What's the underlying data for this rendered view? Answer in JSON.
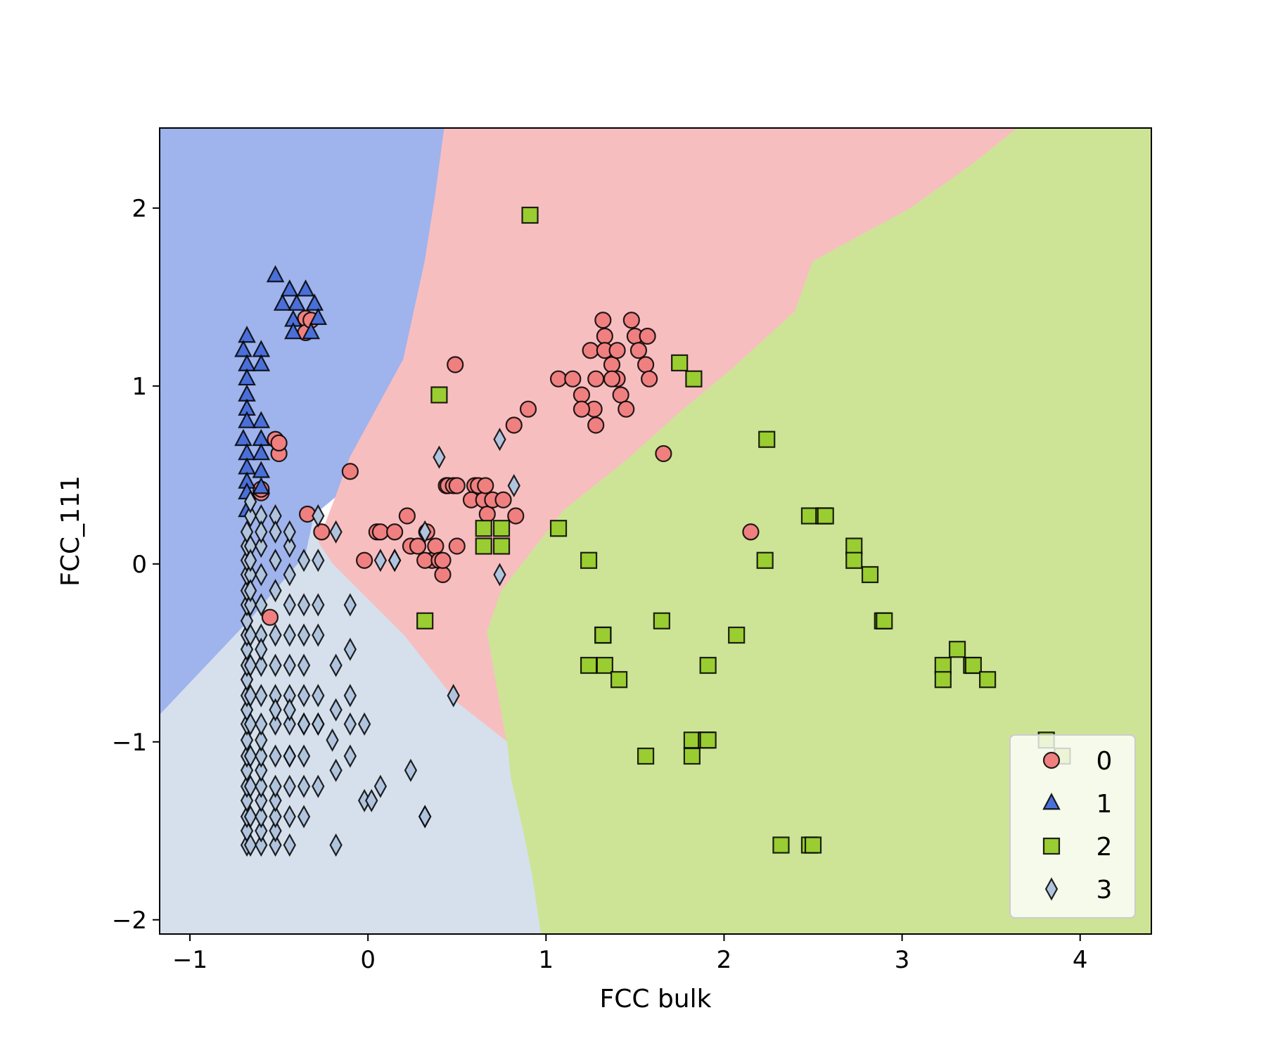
{
  "chart_data": {
    "type": "scatter",
    "title": "",
    "xlabel": "FCC bulk",
    "ylabel": "FCC_111",
    "xlim": [
      -1.17,
      4.4
    ],
    "ylim": [
      -2.08,
      2.45
    ],
    "x_ticks": [
      {
        "value": -1,
        "label": "−1"
      },
      {
        "value": 0,
        "label": "0"
      },
      {
        "value": 1,
        "label": "1"
      },
      {
        "value": 2,
        "label": "2"
      },
      {
        "value": 3,
        "label": "3"
      },
      {
        "value": 4,
        "label": "4"
      }
    ],
    "y_ticks": [
      {
        "value": -2,
        "label": "−2"
      },
      {
        "value": -1,
        "label": "−1"
      },
      {
        "value": 0,
        "label": "0"
      },
      {
        "value": 1,
        "label": "1"
      },
      {
        "value": 2,
        "label": "2"
      }
    ],
    "grid": false,
    "legend_position": "lower right",
    "regions": [
      {
        "class": "1",
        "color": "#9fb3ec",
        "polygon": [
          [
            -1.17,
            2.45
          ],
          [
            0.43,
            2.45
          ],
          [
            0.38,
            2.08
          ],
          [
            0.32,
            1.7
          ],
          [
            0.2,
            1.15
          ],
          [
            -0.1,
            0.6
          ],
          [
            -0.18,
            0.38
          ],
          [
            -0.3,
            0.28
          ],
          [
            -0.35,
            0.05
          ],
          [
            -0.65,
            -0.3
          ],
          [
            -1.17,
            -0.85
          ]
        ]
      },
      {
        "class": "0",
        "color": "#f7bec0",
        "polygon": [
          [
            0.43,
            2.45
          ],
          [
            3.65,
            2.45
          ],
          [
            3.4,
            2.25
          ],
          [
            3.05,
            2.0
          ],
          [
            2.5,
            1.7
          ],
          [
            2.4,
            1.42
          ],
          [
            2.05,
            1.1
          ],
          [
            1.75,
            0.85
          ],
          [
            1.45,
            0.58
          ],
          [
            1.1,
            0.3
          ],
          [
            0.75,
            -0.15
          ],
          [
            0.67,
            -0.38
          ],
          [
            0.7,
            -0.55
          ],
          [
            0.78,
            -1.0
          ],
          [
            0.5,
            -0.78
          ],
          [
            0.2,
            -0.4
          ],
          [
            -0.2,
            0.0
          ],
          [
            -0.28,
            0.12
          ],
          [
            -0.18,
            0.38
          ],
          [
            -0.1,
            0.6
          ],
          [
            0.2,
            1.15
          ],
          [
            0.32,
            1.7
          ],
          [
            0.38,
            2.08
          ]
        ]
      },
      {
        "class": "2",
        "color": "#cde496",
        "polygon": [
          [
            3.65,
            2.45
          ],
          [
            4.4,
            2.45
          ],
          [
            4.4,
            -2.08
          ],
          [
            0.97,
            -2.08
          ],
          [
            0.92,
            -1.75
          ],
          [
            0.87,
            -1.5
          ],
          [
            0.8,
            -1.2
          ],
          [
            0.78,
            -1.0
          ],
          [
            0.7,
            -0.55
          ],
          [
            0.67,
            -0.38
          ],
          [
            0.75,
            -0.15
          ],
          [
            1.1,
            0.3
          ],
          [
            1.45,
            0.58
          ],
          [
            1.75,
            0.85
          ],
          [
            2.05,
            1.1
          ],
          [
            2.4,
            1.42
          ],
          [
            2.5,
            1.7
          ],
          [
            3.05,
            2.0
          ],
          [
            3.4,
            2.25
          ]
        ]
      },
      {
        "class": "3",
        "color": "#d5e0ec",
        "polygon": [
          [
            -1.17,
            -0.85
          ],
          [
            -0.65,
            -0.3
          ],
          [
            -0.35,
            0.05
          ],
          [
            -0.3,
            0.28
          ],
          [
            -0.28,
            0.12
          ],
          [
            -0.2,
            0.0
          ],
          [
            0.2,
            -0.4
          ],
          [
            0.5,
            -0.78
          ],
          [
            0.78,
            -1.0
          ],
          [
            0.8,
            -1.2
          ],
          [
            0.87,
            -1.5
          ],
          [
            0.92,
            -1.75
          ],
          [
            0.97,
            -2.08
          ],
          [
            -1.17,
            -2.08
          ]
        ]
      }
    ],
    "series": [
      {
        "name": "0",
        "marker": "circle",
        "color": "#f08080",
        "x": [
          -0.52,
          -0.5,
          -0.5,
          -0.6,
          -0.6,
          -0.34,
          -0.35,
          -0.26,
          -0.1,
          0.05,
          -0.02,
          0.07,
          0.15,
          0.22,
          0.24,
          0.28,
          0.33,
          0.36,
          0.32,
          0.38,
          0.4,
          0.42,
          0.44,
          0.45,
          0.5,
          0.42,
          0.48,
          0.5,
          0.6,
          0.58,
          0.65,
          0.62,
          0.67,
          0.7,
          0.66,
          0.76,
          0.83,
          0.82,
          0.9,
          0.49,
          1.07,
          1.15,
          1.2,
          1.27,
          1.28,
          1.25,
          1.32,
          1.33,
          1.33,
          1.37,
          1.4,
          1.42,
          1.45,
          1.48,
          1.5,
          1.52,
          1.57,
          1.56,
          1.2,
          1.37,
          1.28,
          1.4,
          1.58,
          1.66,
          2.15,
          -0.55,
          -0.35,
          -0.32
        ],
        "y": [
          0.7,
          0.62,
          0.68,
          0.4,
          0.42,
          0.28,
          1.38,
          0.18,
          0.52,
          0.18,
          0.02,
          0.18,
          0.18,
          0.27,
          0.1,
          0.1,
          0.18,
          0.02,
          0.02,
          0.1,
          0.02,
          -0.06,
          0.44,
          0.44,
          0.1,
          0.02,
          0.44,
          0.44,
          0.44,
          0.36,
          0.36,
          0.44,
          0.28,
          0.36,
          0.44,
          0.36,
          0.27,
          0.78,
          0.87,
          1.12,
          1.04,
          1.04,
          0.95,
          0.87,
          1.04,
          1.2,
          1.37,
          1.28,
          1.2,
          1.12,
          1.04,
          0.95,
          0.87,
          1.37,
          1.28,
          1.2,
          1.28,
          1.12,
          0.87,
          1.04,
          0.78,
          1.2,
          1.04,
          0.62,
          0.18,
          -0.3,
          1.3,
          1.37
        ]
      },
      {
        "name": "1",
        "marker": "triangle",
        "color": "#4a6fd8",
        "x": [
          -0.52,
          -0.44,
          -0.35,
          -0.4,
          -0.48,
          -0.42,
          -0.3,
          -0.28,
          -0.32,
          -0.42,
          -0.68,
          -0.7,
          -0.6,
          -0.68,
          -0.6,
          -0.68,
          -0.68,
          -0.68,
          -0.6,
          -0.68,
          -0.7,
          -0.6,
          -0.68,
          -0.6,
          -0.68,
          -0.68,
          -0.6,
          -0.68,
          -0.6,
          -0.68
        ],
        "y": [
          1.62,
          1.54,
          1.54,
          1.46,
          1.46,
          1.37,
          1.46,
          1.38,
          1.3,
          1.3,
          1.28,
          1.2,
          1.2,
          1.12,
          1.12,
          1.04,
          0.95,
          0.87,
          0.8,
          0.8,
          0.7,
          0.7,
          0.62,
          0.62,
          0.54,
          0.46,
          0.52,
          0.4,
          0.43,
          0.3
        ]
      },
      {
        "name": "2",
        "marker": "square",
        "color": "#9acd32",
        "x": [
          0.91,
          0.4,
          0.65,
          0.75,
          0.65,
          0.75,
          0.32,
          1.07,
          1.24,
          1.32,
          1.32,
          1.24,
          1.33,
          1.41,
          1.56,
          1.65,
          1.75,
          1.83,
          1.82,
          1.82,
          1.9,
          1.91,
          1.91,
          2.07,
          2.24,
          2.23,
          2.48,
          2.56,
          2.57,
          2.73,
          2.73,
          2.82,
          2.89,
          2.9,
          2.32,
          2.48,
          2.5,
          3.23,
          3.23,
          3.31,
          3.39,
          3.4,
          3.48,
          3.81,
          3.9
        ],
        "y": [
          1.96,
          0.95,
          0.2,
          0.2,
          0.1,
          0.1,
          -0.32,
          0.2,
          0.02,
          -0.4,
          -0.4,
          -0.57,
          -0.57,
          -0.65,
          -1.08,
          -0.32,
          1.13,
          1.04,
          -0.99,
          -1.08,
          -0.99,
          -0.99,
          -0.57,
          -0.4,
          0.7,
          0.02,
          0.27,
          0.27,
          0.27,
          0.1,
          0.02,
          -0.06,
          -0.32,
          -0.32,
          -1.58,
          -1.58,
          -1.58,
          -0.57,
          -0.65,
          -0.48,
          -0.57,
          -0.57,
          -0.65,
          -0.99,
          -1.08
        ]
      },
      {
        "name": "3",
        "marker": "diamond",
        "color": "#b0c4de",
        "x": [
          -0.68,
          -0.68,
          -0.68,
          -0.68,
          -0.68,
          -0.68,
          -0.68,
          -0.68,
          -0.68,
          -0.68,
          -0.68,
          -0.68,
          -0.68,
          -0.68,
          -0.68,
          -0.68,
          -0.68,
          -0.68,
          -0.68,
          -0.68,
          -0.68,
          -0.68,
          -0.66,
          -0.66,
          -0.66,
          -0.66,
          -0.66,
          -0.66,
          -0.66,
          -0.66,
          -0.66,
          -0.66,
          -0.66,
          -0.66,
          -0.66,
          -0.66,
          -0.66,
          -0.6,
          -0.6,
          -0.6,
          -0.6,
          -0.6,
          -0.6,
          -0.6,
          -0.6,
          -0.6,
          -0.6,
          -0.6,
          -0.6,
          -0.6,
          -0.6,
          -0.6,
          -0.6,
          -0.6,
          -0.52,
          -0.52,
          -0.52,
          -0.52,
          -0.52,
          -0.52,
          -0.52,
          -0.52,
          -0.52,
          -0.52,
          -0.52,
          -0.52,
          -0.52,
          -0.52,
          -0.44,
          -0.44,
          -0.44,
          -0.44,
          -0.44,
          -0.44,
          -0.44,
          -0.44,
          -0.44,
          -0.44,
          -0.44,
          -0.44,
          -0.36,
          -0.36,
          -0.36,
          -0.36,
          -0.36,
          -0.36,
          -0.36,
          -0.36,
          -0.36,
          -0.28,
          -0.28,
          -0.28,
          -0.28,
          -0.28,
          -0.28,
          -0.28,
          -0.18,
          -0.18,
          -0.18,
          -0.18,
          -0.18,
          -0.1,
          -0.1,
          -0.1,
          -0.1,
          -0.1,
          -0.02,
          -0.02,
          0.07,
          0.15,
          0.24,
          0.32,
          0.4,
          0.48,
          0.32,
          0.74,
          0.74,
          0.82,
          -0.52,
          -0.44,
          -0.28,
          -0.36,
          -0.44,
          -0.2,
          -0.6,
          0.02,
          0.07,
          0.15,
          0.32
        ],
        "y": [
          -1.58,
          -1.5,
          -1.42,
          -1.33,
          -1.25,
          -1.16,
          -1.08,
          -0.99,
          -0.9,
          -0.82,
          -0.74,
          -0.65,
          -0.57,
          -0.48,
          -0.4,
          -0.32,
          -0.23,
          -0.15,
          -0.06,
          0.02,
          0.1,
          0.18,
          -1.58,
          -1.42,
          -1.25,
          -1.08,
          -0.9,
          -0.74,
          -0.57,
          -0.4,
          -0.23,
          -0.06,
          0.1,
          0.27,
          0.35,
          -0.15,
          0.02,
          -1.58,
          -1.5,
          -1.42,
          -1.33,
          -1.25,
          -1.16,
          -1.08,
          -0.99,
          -0.9,
          -0.74,
          -0.57,
          -0.4,
          -0.23,
          -0.06,
          0.1,
          0.27,
          0.18,
          -1.58,
          -1.5,
          -1.42,
          -1.33,
          -1.25,
          -1.08,
          -0.9,
          -0.74,
          -0.57,
          -0.4,
          -0.15,
          0.02,
          0.27,
          0.18,
          -1.58,
          -1.42,
          -1.25,
          -1.08,
          -0.9,
          -0.74,
          -0.57,
          -0.4,
          -0.23,
          -0.06,
          0.1,
          0.18,
          -1.42,
          -1.25,
          -1.08,
          -0.9,
          -0.74,
          -0.57,
          -0.4,
          -0.23,
          0.02,
          -1.25,
          -0.9,
          -0.74,
          -0.4,
          -0.23,
          0.02,
          0.27,
          -1.58,
          -1.16,
          -0.82,
          -0.57,
          0.18,
          -1.08,
          -0.9,
          -0.74,
          -0.48,
          -0.23,
          -0.9,
          -1.33,
          0.02,
          0.02,
          -1.16,
          -1.42,
          0.6,
          -0.74,
          0.18,
          0.7,
          -0.06,
          0.44,
          -0.82,
          -0.82,
          -0.9,
          -0.9,
          -1.08,
          -0.99,
          -0.48,
          -1.33,
          -1.25,
          0.02,
          -1.42
        ]
      }
    ]
  }
}
